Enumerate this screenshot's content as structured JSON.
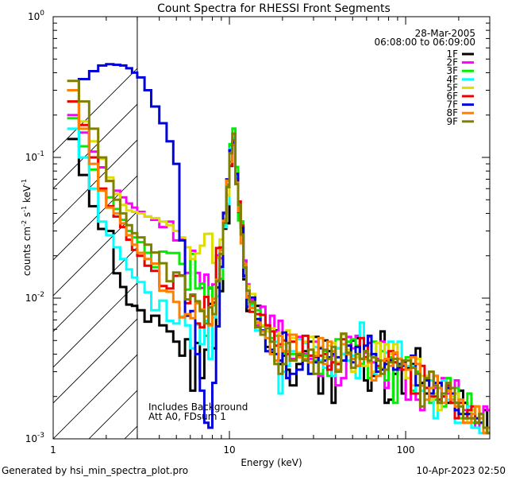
{
  "chart_data": {
    "type": "line",
    "title": "Count Spectra for RHESSI Front Segments",
    "xlabel": "Energy (keV)",
    "ylabel_parts": [
      "counts cm",
      "-2",
      " s",
      "-1",
      " keV",
      "-1"
    ],
    "xscale": "log",
    "yscale": "log",
    "xlim": [
      1.0,
      300.0
    ],
    "ylim": [
      0.001,
      1.0
    ],
    "x_ticks": [
      {
        "value": 1,
        "label": "1"
      },
      {
        "value": 10,
        "label": "10"
      },
      {
        "value": 100,
        "label": "100"
      }
    ],
    "y_ticks": [
      {
        "value": 1,
        "label": "10",
        "exp": "0"
      },
      {
        "value": 0.1,
        "label": "10",
        "exp": "-1"
      },
      {
        "value": 0.01,
        "label": "10",
        "exp": "-2"
      },
      {
        "value": 0.001,
        "label": "10",
        "exp": "-3"
      }
    ],
    "date": "28-Mar-2005",
    "time_range": "06:08:00 to 06:09:00",
    "annotations": [
      "Includes Background",
      "Att A0, FDsum 1"
    ],
    "shaded_region_xmax": 3.0,
    "bins": [
      1.2,
      1.4,
      1.6,
      1.8,
      2.0,
      2.2,
      2.4,
      2.6,
      2.8,
      3.0,
      3.3,
      3.6,
      4.0,
      4.4,
      4.8,
      5.2,
      5.6,
      6.0,
      6.4,
      6.8,
      7.2,
      7.6,
      8.0,
      8.4,
      8.8,
      9.2,
      9.6,
      10.0,
      10.4,
      10.8,
      11.2,
      11.6,
      12.0,
      12.5,
      13.0,
      14.0,
      15.0,
      16.0,
      17.0,
      18.0,
      19.0,
      20.0,
      21.0,
      22.0,
      24.0,
      26.0,
      28.0,
      30.0,
      32.0,
      34.0,
      36.0,
      38.0,
      40.0,
      43.0,
      46.0,
      49.0,
      52.0,
      55.0,
      58.0,
      61.0,
      64.0,
      68.0,
      72.0,
      76.0,
      80.0,
      85.0,
      90.0,
      95.0,
      100.0,
      107.0,
      114.0,
      121.0,
      128.0,
      136.0,
      144.0,
      152.0,
      160.0,
      170.0,
      180.0,
      190.0,
      200.0,
      212.0,
      224.0,
      236.0,
      248.0,
      262.0,
      276.0,
      290.0
    ],
    "series": [
      {
        "name": "1F",
        "color": "#000000",
        "values": [
          0.135,
          0.075,
          0.045,
          0.031,
          0.03,
          0.015,
          0.012,
          0.009,
          0.0088,
          0.0082,
          0.0068,
          0.0075,
          0.0064,
          0.0058,
          0.0049,
          0.0039,
          0.0051,
          0.0022,
          0.0048,
          0.0027,
          0.0043,
          0.0091,
          0.0044,
          0.0119,
          0.0112,
          0.0311,
          0.034,
          0.087,
          0.1236,
          0.0707,
          0.0403,
          0.0322,
          0.0136,
          0.0081,
          0.0091,
          0.0088,
          0.0058,
          0.0045,
          0.0041,
          0.0059,
          0.0034,
          0.0039,
          0.0031,
          0.0024,
          0.0034,
          0.0042,
          0.0049,
          0.0053,
          0.0021,
          0.005,
          0.0042,
          0.0018,
          0.0044,
          0.004,
          0.0036,
          0.005,
          0.0052,
          0.0034,
          0.0026,
          0.0022,
          0.0028,
          0.0032,
          0.0058,
          0.0018,
          0.0019,
          0.0029,
          0.0032,
          0.0021,
          0.0032,
          0.0034,
          0.0044,
          0.0025,
          0.0021,
          0.0019,
          0.0028,
          0.0019,
          0.002,
          0.0018,
          0.0019,
          0.0018,
          0.0022,
          0.0018,
          0.0016,
          0.0016,
          0.0013,
          0.0015,
          0.0016,
          0.0011
        ]
      },
      {
        "name": "2F",
        "color": "#ff00ff",
        "values": [
          0.2,
          0.15,
          0.11,
          0.085,
          0.068,
          0.058,
          0.052,
          0.047,
          0.044,
          0.041,
          0.038,
          0.036,
          0.032,
          0.035,
          0.0257,
          0.0267,
          0.0151,
          0.0217,
          0.0151,
          0.0118,
          0.0147,
          0.0117,
          0.0125,
          0.0201,
          0.0192,
          0.0398,
          0.0642,
          0.1222,
          0.1327,
          0.072,
          0.0433,
          0.0328,
          0.0185,
          0.0125,
          0.0097,
          0.0064,
          0.0087,
          0.0064,
          0.0075,
          0.0058,
          0.0069,
          0.0047,
          0.0055,
          0.0037,
          0.0053,
          0.004,
          0.0037,
          0.0049,
          0.0028,
          0.0038,
          0.0033,
          0.0039,
          0.0024,
          0.0027,
          0.0053,
          0.0044,
          0.0054,
          0.0033,
          0.0041,
          0.0053,
          0.0035,
          0.0037,
          0.0049,
          0.0023,
          0.0037,
          0.004,
          0.0031,
          0.0035,
          0.0019,
          0.0032,
          0.0019,
          0.0016,
          0.0026,
          0.003,
          0.0023,
          0.0018,
          0.0027,
          0.0021,
          0.0023,
          0.0026,
          0.0019,
          0.0016,
          0.0015,
          0.0014,
          0.0012,
          0.0013,
          0.0017,
          0.0016
        ]
      },
      {
        "name": "3F",
        "color": "#00ee00",
        "values": [
          0.19,
          0.12,
          0.082,
          0.06,
          0.052,
          0.043,
          0.036,
          0.03,
          0.027,
          0.025,
          0.021,
          0.0166,
          0.0214,
          0.0209,
          0.0209,
          0.0175,
          0.0115,
          0.0206,
          0.0117,
          0.0127,
          0.0054,
          0.0119,
          0.0089,
          0.0194,
          0.0137,
          0.0328,
          0.0629,
          0.1245,
          0.1601,
          0.0856,
          0.0357,
          0.0351,
          0.0164,
          0.0098,
          0.0091,
          0.0082,
          0.0063,
          0.0064,
          0.0052,
          0.0054,
          0.0045,
          0.0041,
          0.004,
          0.004,
          0.004,
          0.0039,
          0.0039,
          0.0036,
          0.0029,
          0.0042,
          0.0028,
          0.0035,
          0.0051,
          0.0036,
          0.0049,
          0.0051,
          0.0046,
          0.0034,
          0.0042,
          0.0027,
          0.0049,
          0.0032,
          0.0042,
          0.0026,
          0.0038,
          0.0018,
          0.0037,
          0.0031,
          0.0038,
          0.0022,
          0.003,
          0.0024,
          0.0023,
          0.0018,
          0.0019,
          0.0019,
          0.0017,
          0.0027,
          0.0018,
          0.0023,
          0.0014,
          0.0014,
          0.0021,
          0.0013,
          0.0017,
          0.0013,
          0.0012,
          0.0011
        ]
      },
      {
        "name": "4F",
        "color": "#00ffff",
        "values": [
          0.16,
          0.1,
          0.06,
          0.035,
          0.028,
          0.023,
          0.019,
          0.016,
          0.014,
          0.013,
          0.011,
          0.0082,
          0.0096,
          0.0069,
          0.0066,
          0.0074,
          0.0064,
          0.0044,
          0.0065,
          0.0047,
          0.0069,
          0.0037,
          0.0073,
          0.0103,
          0.0164,
          0.032,
          0.0466,
          0.1147,
          0.1377,
          0.0732,
          0.0475,
          0.0326,
          0.0142,
          0.0091,
          0.0088,
          0.0059,
          0.0058,
          0.0042,
          0.0049,
          0.0049,
          0.0021,
          0.003,
          0.0033,
          0.0042,
          0.0051,
          0.0048,
          0.0029,
          0.0045,
          0.0036,
          0.0032,
          0.0031,
          0.0028,
          0.0044,
          0.004,
          0.0036,
          0.0039,
          0.0027,
          0.0067,
          0.0042,
          0.0039,
          0.0029,
          0.0036,
          0.0036,
          0.0041,
          0.0049,
          0.0035,
          0.0049,
          0.0031,
          0.0033,
          0.0033,
          0.0021,
          0.0022,
          0.0023,
          0.0026,
          0.0014,
          0.0018,
          0.0026,
          0.0019,
          0.0019,
          0.0013,
          0.0013,
          0.0013,
          0.0017,
          0.0012,
          0.0012,
          0.0011,
          0.0011,
          0.0012
        ]
      },
      {
        "name": "5F",
        "color": "#dddd00",
        "values": [
          0.25,
          0.18,
          0.13,
          0.098,
          0.072,
          0.055,
          0.046,
          0.042,
          0.041,
          0.04,
          0.038,
          0.037,
          0.035,
          0.033,
          0.03,
          0.027,
          0.023,
          0.019,
          0.0208,
          0.0236,
          0.0286,
          0.0287,
          0.0178,
          0.0195,
          0.0261,
          0.0367,
          0.0539,
          0.1106,
          0.1439,
          0.0695,
          0.045,
          0.0323,
          0.0167,
          0.0122,
          0.0107,
          0.0069,
          0.0064,
          0.0058,
          0.0061,
          0.004,
          0.0057,
          0.0047,
          0.0059,
          0.0052,
          0.0041,
          0.0049,
          0.0053,
          0.0041,
          0.0045,
          0.0038,
          0.0046,
          0.0048,
          0.0035,
          0.0055,
          0.0043,
          0.003,
          0.0038,
          0.0033,
          0.0033,
          0.004,
          0.003,
          0.0048,
          0.0032,
          0.0047,
          0.004,
          0.0047,
          0.0037,
          0.0034,
          0.0027,
          0.0024,
          0.0037,
          0.0028,
          0.0028,
          0.0019,
          0.0021,
          0.0016,
          0.0021,
          0.0022,
          0.002,
          0.0021,
          0.0018,
          0.0014,
          0.0013,
          0.0016,
          0.0014,
          0.0015,
          0.0012,
          0.0011
        ]
      },
      {
        "name": "6F",
        "color": "#ee0000",
        "values": [
          0.25,
          0.17,
          0.1,
          0.06,
          0.045,
          0.038,
          0.032,
          0.026,
          0.022,
          0.02,
          0.017,
          0.0156,
          0.0122,
          0.0117,
          0.0144,
          0.0145,
          0.0092,
          0.0104,
          0.0066,
          0.0062,
          0.0102,
          0.0065,
          0.0093,
          0.0227,
          0.0229,
          0.0404,
          0.0618,
          0.0876,
          0.1318,
          0.0765,
          0.0486,
          0.0327,
          0.0145,
          0.0103,
          0.008,
          0.0077,
          0.0076,
          0.0064,
          0.0058,
          0.0046,
          0.0047,
          0.005,
          0.004,
          0.0049,
          0.0039,
          0.0054,
          0.0039,
          0.0038,
          0.0039,
          0.004,
          0.0031,
          0.0035,
          0.0034,
          0.0051,
          0.004,
          0.0037,
          0.0033,
          0.0052,
          0.0038,
          0.0048,
          0.0038,
          0.0033,
          0.0031,
          0.0036,
          0.0042,
          0.0035,
          0.0033,
          0.0031,
          0.0031,
          0.0021,
          0.0021,
          0.0033,
          0.0023,
          0.002,
          0.002,
          0.0019,
          0.002,
          0.0024,
          0.0018,
          0.0014,
          0.0018,
          0.0014,
          0.0016,
          0.0017,
          0.0013,
          0.0015,
          0.0011,
          0.0011
        ]
      },
      {
        "name": "7F",
        "color": "#0000dd",
        "values": [
          0.3,
          0.36,
          0.41,
          0.45,
          0.46,
          0.455,
          0.45,
          0.43,
          0.4,
          0.37,
          0.3,
          0.23,
          0.175,
          0.13,
          0.09,
          0.0257,
          0.0075,
          0.0081,
          0.004,
          0.0022,
          0.0013,
          0.0012,
          0.0025,
          0.0063,
          0.0167,
          0.0404,
          0.0698,
          0.1126,
          0.1277,
          0.0763,
          0.0411,
          0.0316,
          0.0143,
          0.0087,
          0.0101,
          0.0071,
          0.0059,
          0.0042,
          0.0043,
          0.004,
          0.0036,
          0.0057,
          0.0027,
          0.0029,
          0.0031,
          0.0036,
          0.0029,
          0.0035,
          0.0044,
          0.0036,
          0.0038,
          0.004,
          0.0038,
          0.0036,
          0.0046,
          0.0035,
          0.0045,
          0.0037,
          0.0046,
          0.0054,
          0.004,
          0.003,
          0.0031,
          0.0034,
          0.0036,
          0.0031,
          0.0034,
          0.0033,
          0.0036,
          0.0039,
          0.0024,
          0.0024,
          0.0026,
          0.0021,
          0.0025,
          0.0025,
          0.0021,
          0.0023,
          0.0021,
          0.0016,
          0.0015,
          0.0015,
          0.0015,
          0.0014,
          0.0014,
          0.0013,
          0.0012,
          0.0012
        ]
      },
      {
        "name": "8F",
        "color": "#ff8000",
        "values": [
          0.3,
          0.16,
          0.09,
          0.058,
          0.044,
          0.04,
          0.034,
          0.028,
          0.024,
          0.021,
          0.019,
          0.0176,
          0.0113,
          0.0111,
          0.0094,
          0.0073,
          0.0077,
          0.0072,
          0.0092,
          0.0083,
          0.0074,
          0.0064,
          0.0099,
          0.0135,
          0.0219,
          0.0354,
          0.0683,
          0.0931,
          0.1224,
          0.0661,
          0.0415,
          0.0245,
          0.0175,
          0.0101,
          0.0085,
          0.0067,
          0.0058,
          0.0052,
          0.004,
          0.0036,
          0.0054,
          0.0042,
          0.0042,
          0.0055,
          0.0038,
          0.0037,
          0.0035,
          0.0039,
          0.0052,
          0.0034,
          0.0049,
          0.0042,
          0.0031,
          0.0047,
          0.004,
          0.0037,
          0.0033,
          0.0037,
          0.0037,
          0.0035,
          0.0026,
          0.0028,
          0.0036,
          0.0037,
          0.0033,
          0.0041,
          0.0037,
          0.0034,
          0.0031,
          0.0038,
          0.0034,
          0.0024,
          0.0019,
          0.0023,
          0.0028,
          0.0023,
          0.0018,
          0.0022,
          0.0019,
          0.0017,
          0.0019,
          0.0013,
          0.0013,
          0.0015,
          0.0017,
          0.0014,
          0.0011,
          0.0012
        ]
      },
      {
        "name": "9F",
        "color": "#808000",
        "values": [
          0.35,
          0.25,
          0.16,
          0.1,
          0.068,
          0.05,
          0.04,
          0.033,
          0.029,
          0.027,
          0.024,
          0.0211,
          0.0177,
          0.0132,
          0.0152,
          0.0144,
          0.0098,
          0.0106,
          0.0095,
          0.0081,
          0.0066,
          0.0086,
          0.0077,
          0.0132,
          0.0206,
          0.0342,
          0.0615,
          0.1072,
          0.1476,
          0.0646,
          0.0461,
          0.0283,
          0.0165,
          0.0113,
          0.0094,
          0.0062,
          0.0055,
          0.0061,
          0.0049,
          0.0034,
          0.0029,
          0.0034,
          0.0048,
          0.0036,
          0.004,
          0.0036,
          0.0043,
          0.0029,
          0.0035,
          0.0043,
          0.0037,
          0.0045,
          0.003,
          0.0056,
          0.0041,
          0.0032,
          0.004,
          0.0037,
          0.0042,
          0.0036,
          0.0038,
          0.0036,
          0.0029,
          0.0031,
          0.0035,
          0.0037,
          0.0033,
          0.0036,
          0.0036,
          0.0032,
          0.0029,
          0.0017,
          0.0027,
          0.003,
          0.0024,
          0.0018,
          0.0021,
          0.0025,
          0.0023,
          0.0018,
          0.0017,
          0.0014,
          0.0014,
          0.0014,
          0.0013,
          0.0015,
          0.0012,
          0.0011
        ]
      }
    ]
  },
  "footer": {
    "left": "Generated by hsi_min_spectra_plot.pro",
    "right": "10-Apr-2023 02:50"
  }
}
